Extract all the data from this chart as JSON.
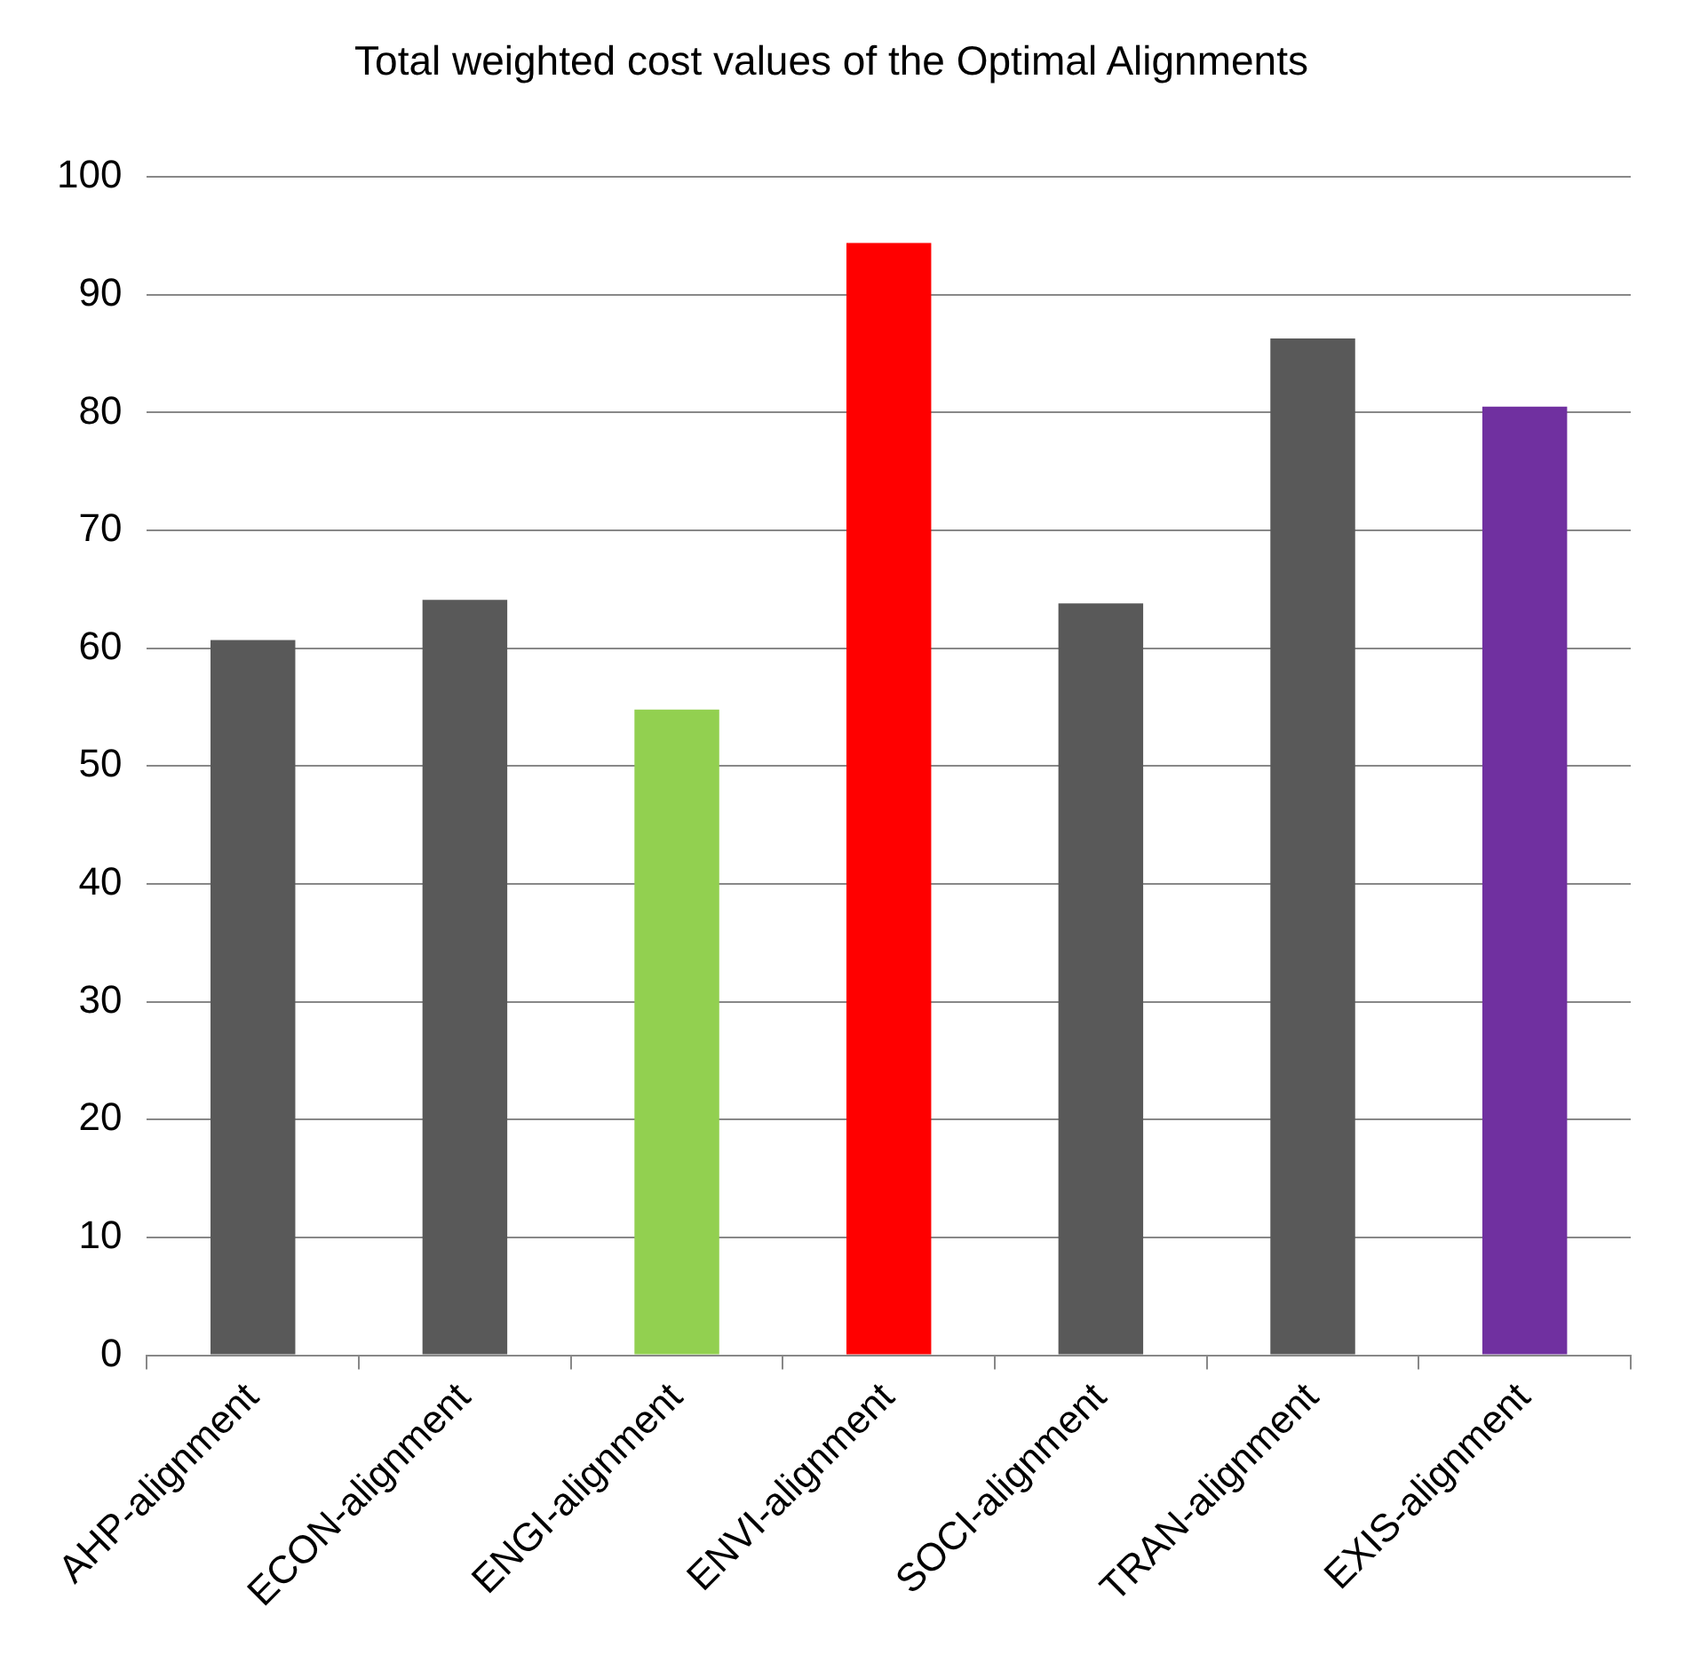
{
  "chart_data": {
    "type": "bar",
    "title": "Total weighted cost values of the Optimal Alignments",
    "categories": [
      "AHP-alignment",
      "ECON-alignment",
      "ENGI-alignment",
      "ENVI-alignment",
      "SOCI-alignment",
      "TRAN-alignment",
      "EXIS-alignment"
    ],
    "values": [
      60.7,
      64.1,
      54.8,
      94.4,
      63.8,
      86.3,
      80.5
    ],
    "colors": [
      "#595959",
      "#595959",
      "#92d050",
      "#ff0000",
      "#595959",
      "#595959",
      "#7030a0"
    ],
    "ylim": [
      0,
      100
    ],
    "yticks": [
      0,
      10,
      20,
      30,
      40,
      50,
      60,
      70,
      80,
      90,
      100
    ],
    "grid": "y",
    "legend": false
  }
}
